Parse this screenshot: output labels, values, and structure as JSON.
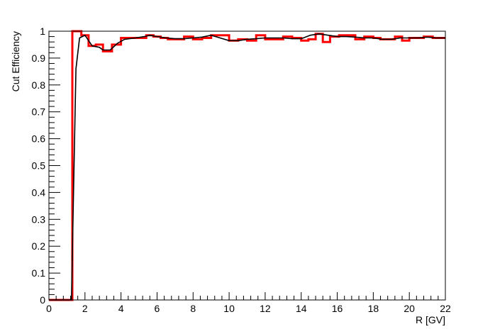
{
  "chart_data": {
    "type": "line",
    "title": "",
    "xlabel": "R [GV]",
    "ylabel": "Cut Efficiency",
    "xlim": [
      0,
      22
    ],
    "ylim": [
      0,
      1
    ],
    "x_ticks": [
      0,
      2,
      4,
      6,
      8,
      10,
      12,
      14,
      16,
      18,
      20,
      22
    ],
    "y_ticks": [
      0,
      0.1,
      0.2,
      0.3,
      0.4,
      0.5,
      0.6,
      0.7,
      0.8,
      0.9,
      1
    ],
    "x_tick_labels": [
      "0",
      "2",
      "4",
      "6",
      "8",
      "10",
      "12",
      "14",
      "16",
      "18",
      "20",
      "22"
    ],
    "y_tick_labels": [
      "0",
      "0.1",
      "0.2",
      "0.3",
      "0.4",
      "0.5",
      "0.6",
      "0.7",
      "0.8",
      "0.9",
      "1"
    ],
    "grid": false,
    "series": [
      {
        "style": "step-histogram",
        "color": "#ff0000",
        "bin_edges": [
          0,
          1.3,
          1.8,
          2.2,
          2.6,
          3.0,
          3.5,
          4.0,
          4.5,
          5.0,
          5.4,
          5.8,
          6.2,
          6.6,
          7.0,
          7.5,
          8.0,
          8.5,
          9.0,
          9.5,
          10.0,
          10.5,
          11.0,
          11.5,
          12.0,
          12.5,
          13.0,
          13.5,
          14.0,
          14.4,
          14.8,
          15.2,
          15.6,
          16.1,
          16.6,
          17.0,
          17.5,
          18.0,
          18.4,
          18.8,
          19.2,
          19.6,
          20.0,
          20.4,
          20.8,
          21.3,
          22.0
        ],
        "values": [
          0.0,
          1.0,
          0.985,
          0.945,
          0.95,
          0.925,
          0.95,
          0.975,
          0.975,
          0.975,
          0.985,
          0.98,
          0.975,
          0.97,
          0.97,
          0.98,
          0.97,
          0.975,
          0.985,
          0.985,
          0.965,
          0.97,
          0.965,
          0.985,
          0.97,
          0.97,
          0.98,
          0.975,
          0.965,
          0.97,
          0.99,
          0.96,
          0.98,
          0.985,
          0.985,
          0.97,
          0.98,
          0.975,
          0.97,
          0.97,
          0.98,
          0.965,
          0.975,
          0.975,
          0.98,
          0.975
        ]
      },
      {
        "style": "smooth-line",
        "color": "#000000",
        "x": [
          0,
          1.25,
          1.35,
          1.5,
          1.7,
          2.0,
          2.4,
          2.8,
          3.0,
          3.4,
          3.8,
          4.2,
          4.8,
          5.3,
          5.6,
          6.0,
          6.5,
          7.0,
          7.5,
          8.0,
          8.5,
          9.0,
          9.5,
          10.0,
          10.5,
          11.0,
          11.5,
          12.0,
          12.5,
          13.0,
          13.5,
          14.0,
          14.5,
          15.0,
          15.5,
          16.0,
          16.5,
          17.0,
          17.5,
          18.0,
          18.5,
          19.0,
          19.5,
          20.0,
          20.5,
          21.0,
          21.5,
          22.0
        ],
        "y": [
          0.0,
          0.0,
          0.35,
          0.86,
          0.975,
          0.985,
          0.945,
          0.94,
          0.93,
          0.93,
          0.955,
          0.97,
          0.975,
          0.98,
          0.985,
          0.98,
          0.975,
          0.972,
          0.972,
          0.975,
          0.978,
          0.985,
          0.975,
          0.965,
          0.965,
          0.97,
          0.972,
          0.975,
          0.975,
          0.975,
          0.972,
          0.972,
          0.985,
          0.99,
          0.985,
          0.98,
          0.98,
          0.978,
          0.975,
          0.975,
          0.97,
          0.97,
          0.975,
          0.975,
          0.975,
          0.978,
          0.975,
          0.975
        ]
      }
    ]
  }
}
